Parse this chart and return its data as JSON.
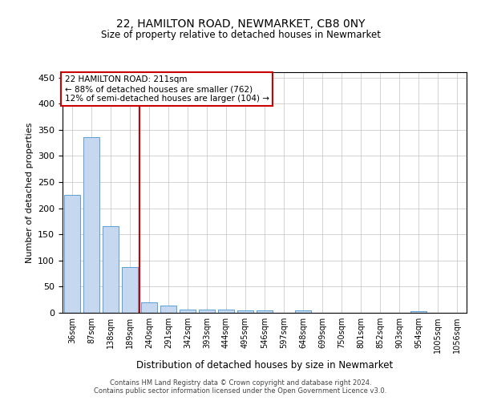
{
  "title": "22, HAMILTON ROAD, NEWMARKET, CB8 0NY",
  "subtitle": "Size of property relative to detached houses in Newmarket",
  "xlabel": "Distribution of detached houses by size in Newmarket",
  "ylabel": "Number of detached properties",
  "bar_color": "#c5d8f0",
  "bar_edge_color": "#5a9fd4",
  "background_color": "#ffffff",
  "grid_color": "#cccccc",
  "annotation_box_color": "#cc0000",
  "vline_color": "#cc0000",
  "vline_x": 3.5,
  "annotation_line1": "22 HAMILTON ROAD: 211sqm",
  "annotation_line2": "← 88% of detached houses are smaller (762)",
  "annotation_line3": "12% of semi-detached houses are larger (104) →",
  "categories": [
    "36sqm",
    "87sqm",
    "138sqm",
    "189sqm",
    "240sqm",
    "291sqm",
    "342sqm",
    "393sqm",
    "444sqm",
    "495sqm",
    "546sqm",
    "597sqm",
    "648sqm",
    "699sqm",
    "750sqm",
    "801sqm",
    "852sqm",
    "903sqm",
    "954sqm",
    "1005sqm",
    "1056sqm"
  ],
  "bar_heights": [
    225,
    336,
    165,
    88,
    20,
    14,
    6,
    6,
    6,
    4,
    5,
    0,
    4,
    0,
    0,
    0,
    0,
    0,
    3,
    0,
    0
  ],
  "ylim": [
    0,
    460
  ],
  "yticks": [
    0,
    50,
    100,
    150,
    200,
    250,
    300,
    350,
    400,
    450
  ],
  "footer1": "Contains HM Land Registry data © Crown copyright and database right 2024.",
  "footer2": "Contains public sector information licensed under the Open Government Licence v3.0."
}
